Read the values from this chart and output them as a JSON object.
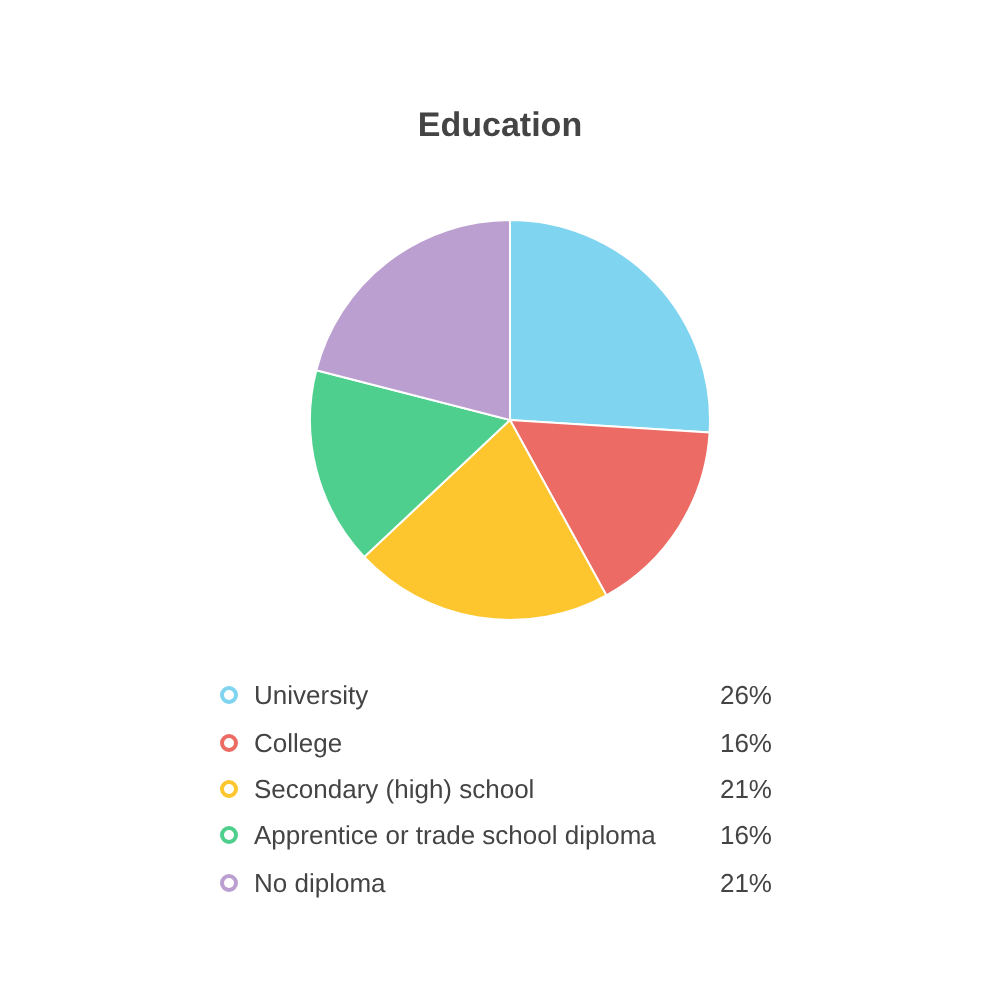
{
  "chart_data": {
    "type": "pie",
    "title": "Education",
    "categories": [
      "University",
      "College",
      "Secondary (high) school",
      "Apprentice or trade school diploma",
      "No diploma"
    ],
    "values": [
      26,
      16,
      21,
      16,
      21
    ],
    "colors": [
      "#7fd4f0",
      "#ec6b64",
      "#fdc62e",
      "#4ecf8e",
      "#bb9fd0"
    ],
    "value_labels": [
      "26%",
      "16%",
      "21%",
      "16%",
      "21%"
    ],
    "legend": "bottom"
  }
}
